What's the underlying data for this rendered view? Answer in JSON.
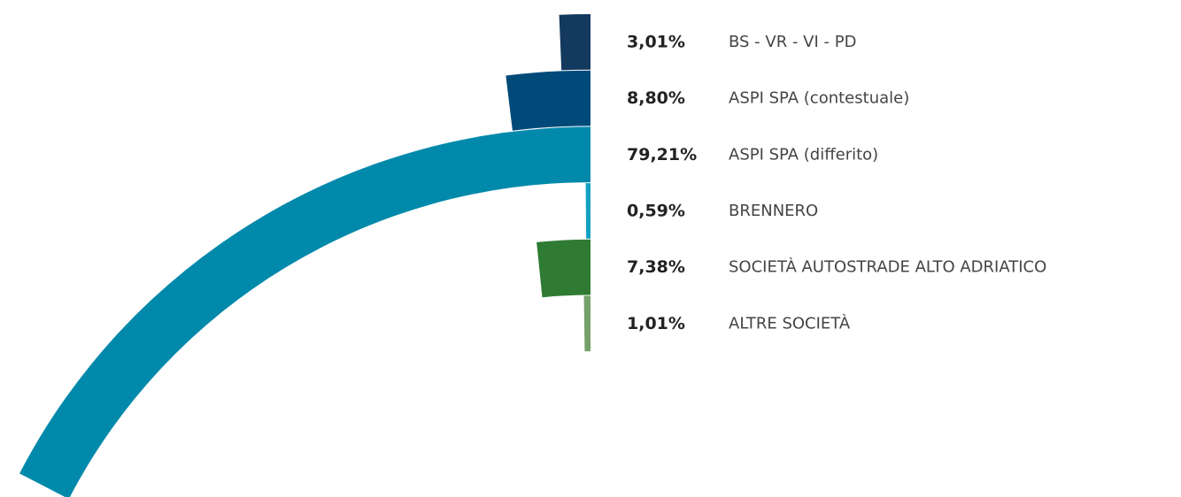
{
  "chart_data": {
    "type": "radial_bar",
    "categories": [
      "BS - VR - VI - PD",
      "ASPI SPA (contestuale)",
      "ASPI SPA (differito)",
      "BRENNERO",
      "SOCIETÀ AUTOSTRADE ALTO ADRIATICO",
      "ALTRE SOCIETÀ"
    ],
    "values": [
      3.01,
      8.8,
      79.21,
      0.59,
      7.38,
      1.01
    ],
    "value_labels": [
      "3,01%",
      "8,80%",
      "79,21%",
      "0,59%",
      "7,38%",
      "1,01%"
    ],
    "colors": [
      "#14395e",
      "#004a79",
      "#0089ab",
      "#13a1c1",
      "#2f7b34",
      "#76a06a"
    ]
  }
}
